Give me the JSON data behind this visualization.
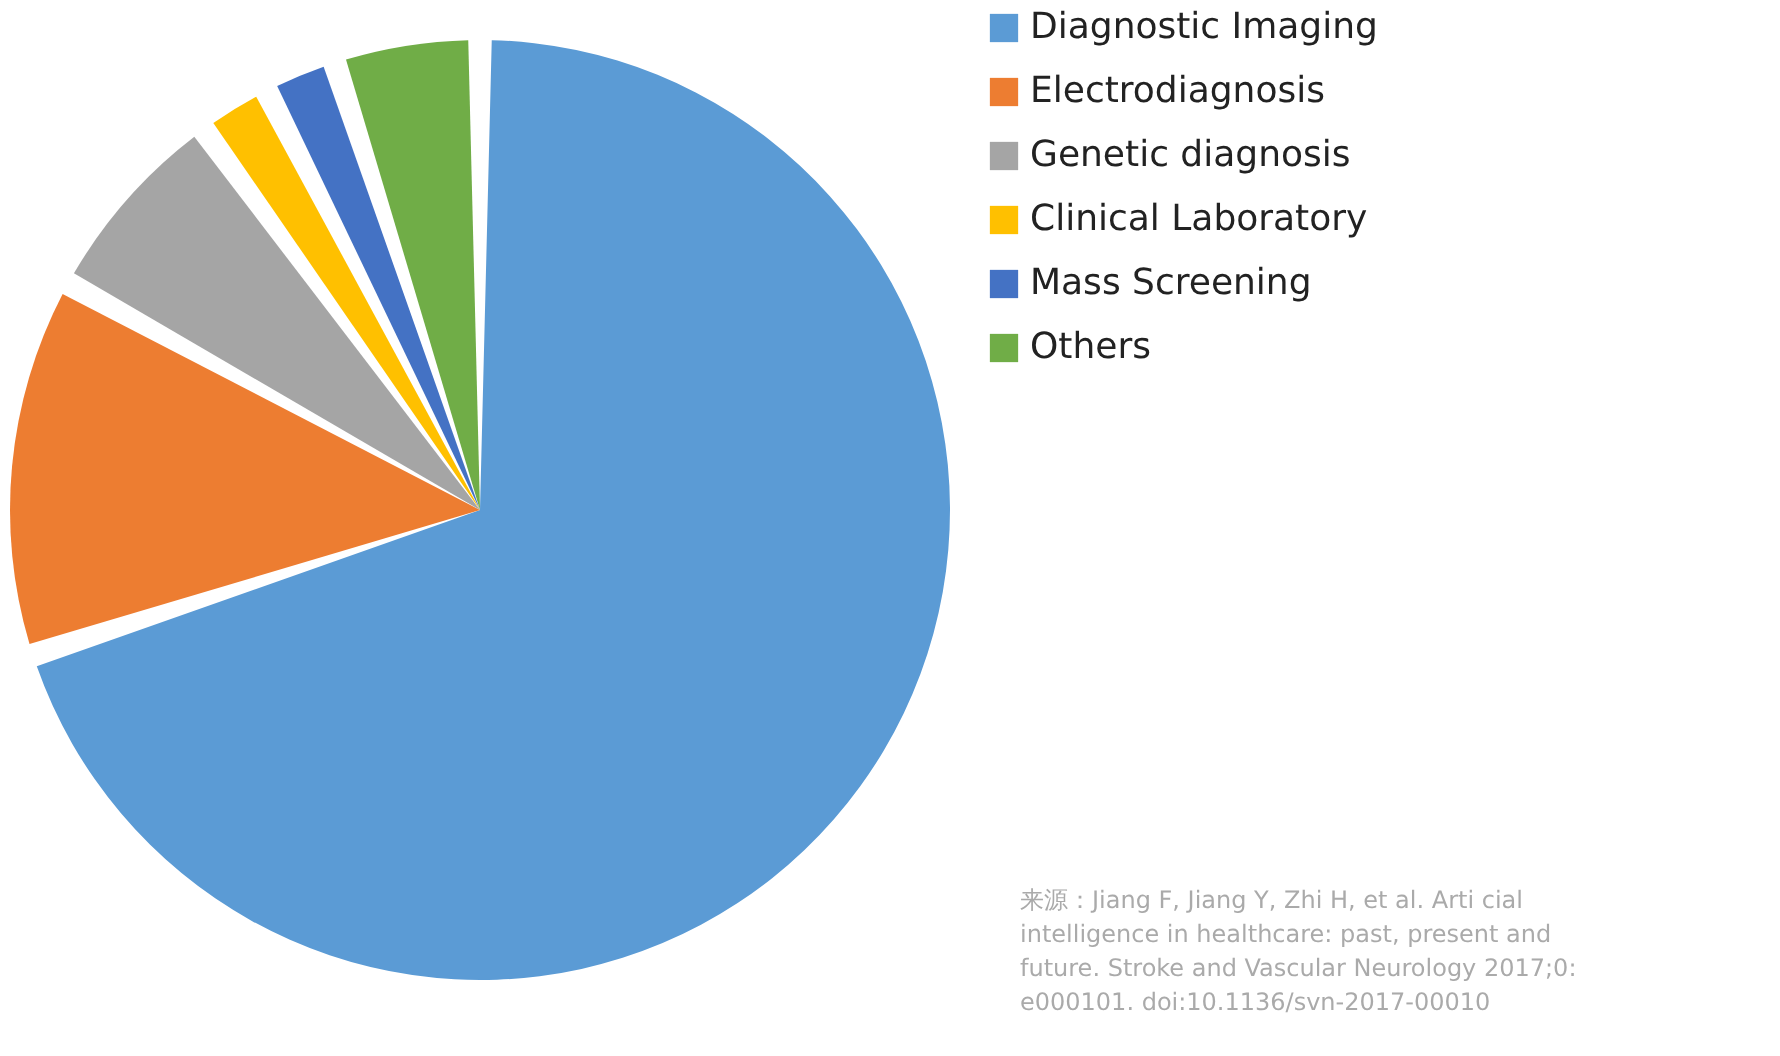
{
  "chart_data": {
    "type": "pie",
    "categories": [
      "Diagnostic Imaging",
      "Electrodiagnosis",
      "Genetic diagnosis",
      "Clinical Laboratory",
      "Mass Screening",
      "Others"
    ],
    "values": [
      70,
      13,
      7,
      2.5,
      2.5,
      5
    ],
    "colors": [
      "#5b9bd5",
      "#ed7d31",
      "#a5a5a5",
      "#ffc000",
      "#4472c4",
      "#70ad47"
    ],
    "legend": "right",
    "annotations": [
      "来源：Jiang F, Jiang Y, Zhi H, et al. Arti cial intelligence in healthcare: past, present and future. Stroke and Vascular Neurology 2017;0: e000101. doi:10.1136/svn-2017-00010"
    ]
  }
}
